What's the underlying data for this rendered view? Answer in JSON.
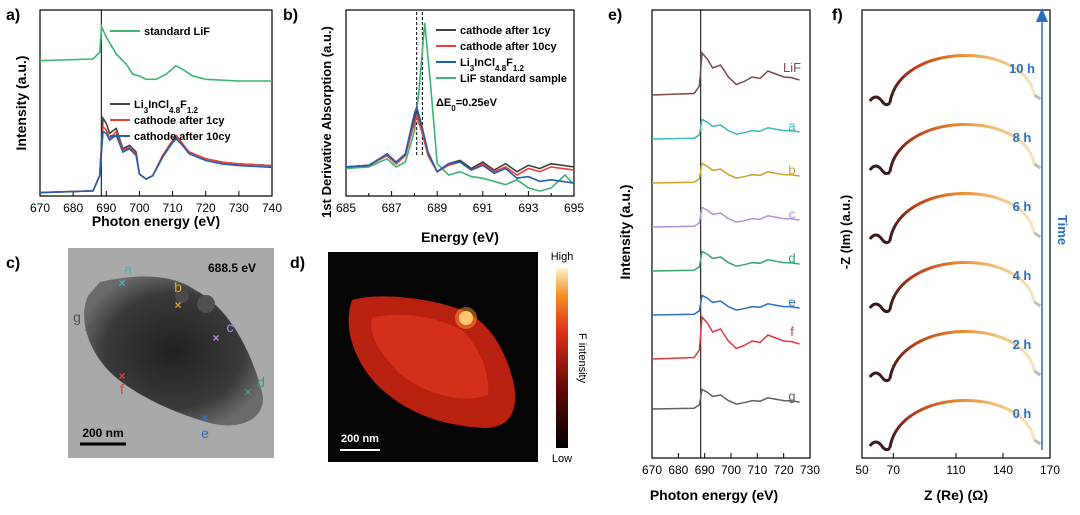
{
  "chart_data": [
    {
      "panel": "a",
      "label": "a)",
      "type": "line",
      "xlabel": "Photon energy (eV)",
      "ylabel": "Intensity (a.u.)",
      "xlim": [
        670,
        740
      ],
      "ylim": [
        0,
        1.1
      ],
      "xticks": [
        670,
        680,
        690,
        700,
        710,
        720,
        730,
        740
      ],
      "vline": 688.5,
      "legend_top": "standard LiF",
      "legend": [
        {
          "parts": [
            {
              "t": "Li"
            },
            {
              "t": "3",
              "sub": true
            },
            {
              "t": "InCl"
            },
            {
              "t": "4.8",
              "sub": true
            },
            {
              "t": "F"
            },
            {
              "t": "1.2",
              "sub": true
            }
          ],
          "color": "#404040"
        },
        {
          "parts": [
            {
              "t": "cathode after 1cy"
            }
          ],
          "color": "#e8413a"
        },
        {
          "parts": [
            {
              "t": "cathode after 10cy"
            }
          ],
          "color": "#1f5fb0"
        }
      ],
      "series": [
        {
          "name": "standard LiF",
          "color": "#3cb371",
          "points": [
            [
              670,
              0.8
            ],
            [
              686,
              0.81
            ],
            [
              688,
              0.85
            ],
            [
              688.6,
              1.0
            ],
            [
              690,
              0.94
            ],
            [
              693,
              0.84
            ],
            [
              696,
              0.78
            ],
            [
              698,
              0.72
            ],
            [
              700,
              0.71
            ],
            [
              702,
              0.69
            ],
            [
              705,
              0.69
            ],
            [
              708,
              0.72
            ],
            [
              711,
              0.77
            ],
            [
              713,
              0.75
            ],
            [
              716,
              0.71
            ],
            [
              720,
              0.69
            ],
            [
              730,
              0.68
            ],
            [
              740,
              0.68
            ]
          ]
        },
        {
          "name": "Li3InCl4.8F1.2",
          "color": "#404040",
          "points": [
            [
              670,
              0.02
            ],
            [
              686,
              0.03
            ],
            [
              688,
              0.12
            ],
            [
              689,
              0.46
            ],
            [
              690,
              0.43
            ],
            [
              691,
              0.37
            ],
            [
              693,
              0.4
            ],
            [
              695,
              0.28
            ],
            [
              697,
              0.3
            ],
            [
              699,
              0.26
            ],
            [
              700,
              0.13
            ],
            [
              702,
              0.1
            ],
            [
              704,
              0.12
            ],
            [
              707,
              0.23
            ],
            [
              709,
              0.29
            ],
            [
              711,
              0.35
            ],
            [
              713,
              0.3
            ],
            [
              715,
              0.26
            ],
            [
              720,
              0.22
            ],
            [
              725,
              0.2
            ],
            [
              730,
              0.19
            ],
            [
              740,
              0.18
            ]
          ]
        },
        {
          "name": "cathode after 1cy",
          "color": "#e8413a",
          "points": [
            [
              670,
              0.02
            ],
            [
              686,
              0.03
            ],
            [
              688,
              0.12
            ],
            [
              689,
              0.41
            ],
            [
              690,
              0.39
            ],
            [
              691,
              0.34
            ],
            [
              693,
              0.38
            ],
            [
              695,
              0.27
            ],
            [
              697,
              0.29
            ],
            [
              699,
              0.25
            ],
            [
              700,
              0.13
            ],
            [
              702,
              0.1
            ],
            [
              704,
              0.12
            ],
            [
              707,
              0.24
            ],
            [
              709,
              0.3
            ],
            [
              711,
              0.36
            ],
            [
              713,
              0.31
            ],
            [
              715,
              0.26
            ],
            [
              720,
              0.22
            ],
            [
              725,
              0.2
            ],
            [
              730,
              0.19
            ],
            [
              740,
              0.18
            ]
          ]
        },
        {
          "name": "cathode after 10cy",
          "color": "#1f5fb0",
          "points": [
            [
              670,
              0.02
            ],
            [
              686,
              0.03
            ],
            [
              688,
              0.12
            ],
            [
              689,
              0.38
            ],
            [
              690,
              0.37
            ],
            [
              691,
              0.33
            ],
            [
              693,
              0.36
            ],
            [
              695,
              0.26
            ],
            [
              697,
              0.28
            ],
            [
              699,
              0.24
            ],
            [
              700,
              0.13
            ],
            [
              702,
              0.1
            ],
            [
              704,
              0.12
            ],
            [
              707,
              0.23
            ],
            [
              709,
              0.29
            ],
            [
              711,
              0.34
            ],
            [
              713,
              0.3
            ],
            [
              715,
              0.25
            ],
            [
              720,
              0.21
            ],
            [
              725,
              0.19
            ],
            [
              730,
              0.18
            ],
            [
              740,
              0.17
            ]
          ]
        }
      ]
    },
    {
      "panel": "b",
      "label": "b)",
      "type": "line",
      "xlabel": "Energy (eV)",
      "ylabel": "1st Derivative Absorption (a.u.)",
      "xlim": [
        685,
        695
      ],
      "ylim": [
        -0.15,
        1.0
      ],
      "xticks": [
        685,
        687,
        689,
        691,
        693,
        695
      ],
      "xticklabels": [
        "685",
        "687",
        "689",
        "691",
        "693",
        "695"
      ],
      "minor_xticks": [
        686,
        688,
        690,
        692,
        694
      ],
      "vlines": [
        688.1,
        688.35
      ],
      "annotation": {
        "parts": [
          {
            "t": "ΔE"
          },
          {
            "t": "0",
            "sub": true
          },
          {
            "t": "=0.25eV"
          }
        ]
      },
      "legend": [
        {
          "parts": [
            {
              "t": "cathode after 1cy"
            }
          ],
          "color": "#404040"
        },
        {
          "parts": [
            {
              "t": "cathode after 10cy"
            }
          ],
          "color": "#e8413a"
        },
        {
          "parts": [
            {
              "t": "Li"
            },
            {
              "t": "3",
              "sub": true
            },
            {
              "t": "InCl"
            },
            {
              "t": "4.8",
              "sub": true
            },
            {
              "t": "F"
            },
            {
              "t": "1.2",
              "sub": true
            }
          ],
          "color": "#1f5fb0"
        },
        {
          "parts": [
            {
              "t": "LiF standard sample"
            }
          ],
          "color": "#3cb371"
        }
      ],
      "series": [
        {
          "name": "LiF standard sample",
          "color": "#3cb371",
          "points": [
            [
              685,
              0.02
            ],
            [
              686,
              0.03
            ],
            [
              686.8,
              0.08
            ],
            [
              687.2,
              0.03
            ],
            [
              687.6,
              0.06
            ],
            [
              688,
              0.25
            ],
            [
              688.2,
              0.5
            ],
            [
              688.45,
              0.92
            ],
            [
              688.7,
              0.55
            ],
            [
              689,
              0.05
            ],
            [
              689.5,
              -0.02
            ],
            [
              690,
              0.0
            ],
            [
              690.5,
              -0.03
            ],
            [
              691,
              -0.04
            ],
            [
              692,
              -0.08
            ],
            [
              692.5,
              -0.05
            ],
            [
              693,
              -0.1
            ],
            [
              693.5,
              -0.12
            ],
            [
              694,
              -0.1
            ],
            [
              694.6,
              -0.02
            ],
            [
              695,
              -0.08
            ]
          ]
        },
        {
          "name": "cathode after 1cy",
          "color": "#404040",
          "points": [
            [
              685,
              0.03
            ],
            [
              686,
              0.04
            ],
            [
              686.8,
              0.1
            ],
            [
              687.2,
              0.05
            ],
            [
              687.6,
              0.1
            ],
            [
              688,
              0.33
            ],
            [
              688.1,
              0.38
            ],
            [
              688.3,
              0.28
            ],
            [
              688.6,
              0.1
            ],
            [
              689,
              0.0
            ],
            [
              689.5,
              0.05
            ],
            [
              690,
              0.07
            ],
            [
              690.5,
              0.02
            ],
            [
              691,
              0.06
            ],
            [
              691.5,
              0.01
            ],
            [
              692,
              0.05
            ],
            [
              692.5,
              0.0
            ],
            [
              693,
              0.04
            ],
            [
              693.5,
              0.02
            ],
            [
              694,
              0.05
            ],
            [
              695,
              0.03
            ]
          ]
        },
        {
          "name": "cathode after 10cy",
          "color": "#e8413a",
          "points": [
            [
              685,
              0.03
            ],
            [
              686,
              0.04
            ],
            [
              686.8,
              0.1
            ],
            [
              687.2,
              0.05
            ],
            [
              687.6,
              0.1
            ],
            [
              688,
              0.3
            ],
            [
              688.1,
              0.34
            ],
            [
              688.3,
              0.26
            ],
            [
              688.6,
              0.1
            ],
            [
              689,
              0.0
            ],
            [
              689.5,
              0.04
            ],
            [
              690,
              0.06
            ],
            [
              690.5,
              0.01
            ],
            [
              691,
              0.05
            ],
            [
              691.5,
              0.0
            ],
            [
              692,
              0.03
            ],
            [
              692.5,
              -0.02
            ],
            [
              693,
              0.02
            ],
            [
              693.5,
              0.0
            ],
            [
              694,
              0.03
            ],
            [
              695,
              0.01
            ]
          ]
        },
        {
          "name": "Li3InCl4.8F1.2",
          "color": "#1f5fb0",
          "points": [
            [
              685,
              0.03
            ],
            [
              686,
              0.04
            ],
            [
              686.8,
              0.11
            ],
            [
              687.2,
              0.06
            ],
            [
              687.6,
              0.11
            ],
            [
              688,
              0.36
            ],
            [
              688.1,
              0.4
            ],
            [
              688.3,
              0.3
            ],
            [
              688.6,
              0.12
            ],
            [
              689,
              0.0
            ],
            [
              689.5,
              0.05
            ],
            [
              690,
              0.06
            ],
            [
              690.5,
              0.01
            ],
            [
              691,
              0.04
            ],
            [
              691.5,
              -0.01
            ],
            [
              692,
              0.02
            ],
            [
              692.5,
              -0.04
            ],
            [
              693,
              -0.03
            ],
            [
              693.5,
              -0.06
            ],
            [
              694,
              -0.05
            ],
            [
              695,
              -0.07
            ]
          ]
        }
      ]
    },
    {
      "panel": "e",
      "label": "e)",
      "type": "line",
      "xlabel": "Photon energy (eV)",
      "ylabel": "Intensity (a.u.)",
      "xlim": [
        670,
        730
      ],
      "xticks": [
        670,
        680,
        690,
        700,
        710,
        720,
        730
      ],
      "vline": 688.5,
      "series": [
        {
          "name": "LiF",
          "color": "#7b4a4a",
          "offset": 8
        },
        {
          "name": "a",
          "color": "#3bb8c0",
          "offset": 7
        },
        {
          "name": "b",
          "color": "#c9a227",
          "offset": 6
        },
        {
          "name": "c",
          "color": "#b48ee0",
          "offset": 5
        },
        {
          "name": "d",
          "color": "#3aa36f",
          "offset": 4
        },
        {
          "name": "e",
          "color": "#2a6fc0",
          "offset": 3
        },
        {
          "name": "f",
          "color": "#e0393e",
          "offset": 2
        },
        {
          "name": "g",
          "color": "#606060",
          "offset": 1
        }
      ]
    },
    {
      "panel": "f",
      "label": "f)",
      "type": "scatter",
      "xlabel": "Z (Re) (Ω)",
      "ylabel": "-Z (Im) (a.u.)",
      "xlim": [
        50,
        170
      ],
      "xticks": [
        50,
        70,
        110,
        140,
        170
      ],
      "series_note": "Nyquist plots stacked in time",
      "series": [
        {
          "name": "0 h",
          "r_start": 55,
          "r_end": 160
        },
        {
          "name": "2 h",
          "r_start": 55,
          "r_end": 160
        },
        {
          "name": "4 h",
          "r_start": 55,
          "r_end": 160
        },
        {
          "name": "6 h",
          "r_start": 55,
          "r_end": 160
        },
        {
          "name": "8 h",
          "r_start": 55,
          "r_end": 160
        },
        {
          "name": "10 h",
          "r_start": 55,
          "r_end": 160
        }
      ],
      "arrow_label": "Time"
    }
  ],
  "panel_c": {
    "label": "c)",
    "energy": "688.5 eV",
    "scalebar": "200 nm",
    "points": [
      {
        "name": "a",
        "color": "#3bb8c0"
      },
      {
        "name": "b",
        "color": "#d4a62a"
      },
      {
        "name": "c",
        "color": "#b48ee0"
      },
      {
        "name": "d",
        "color": "#3aa36f"
      },
      {
        "name": "e",
        "color": "#2a6fc0"
      },
      {
        "name": "f",
        "color": "#e0393e"
      },
      {
        "name": "g",
        "color": "#555555"
      }
    ]
  },
  "panel_d": {
    "label": "d)",
    "scalebar": "200 nm",
    "colorbar_high": "High",
    "colorbar_low": "Low",
    "colorbar_label": "F intensity"
  }
}
